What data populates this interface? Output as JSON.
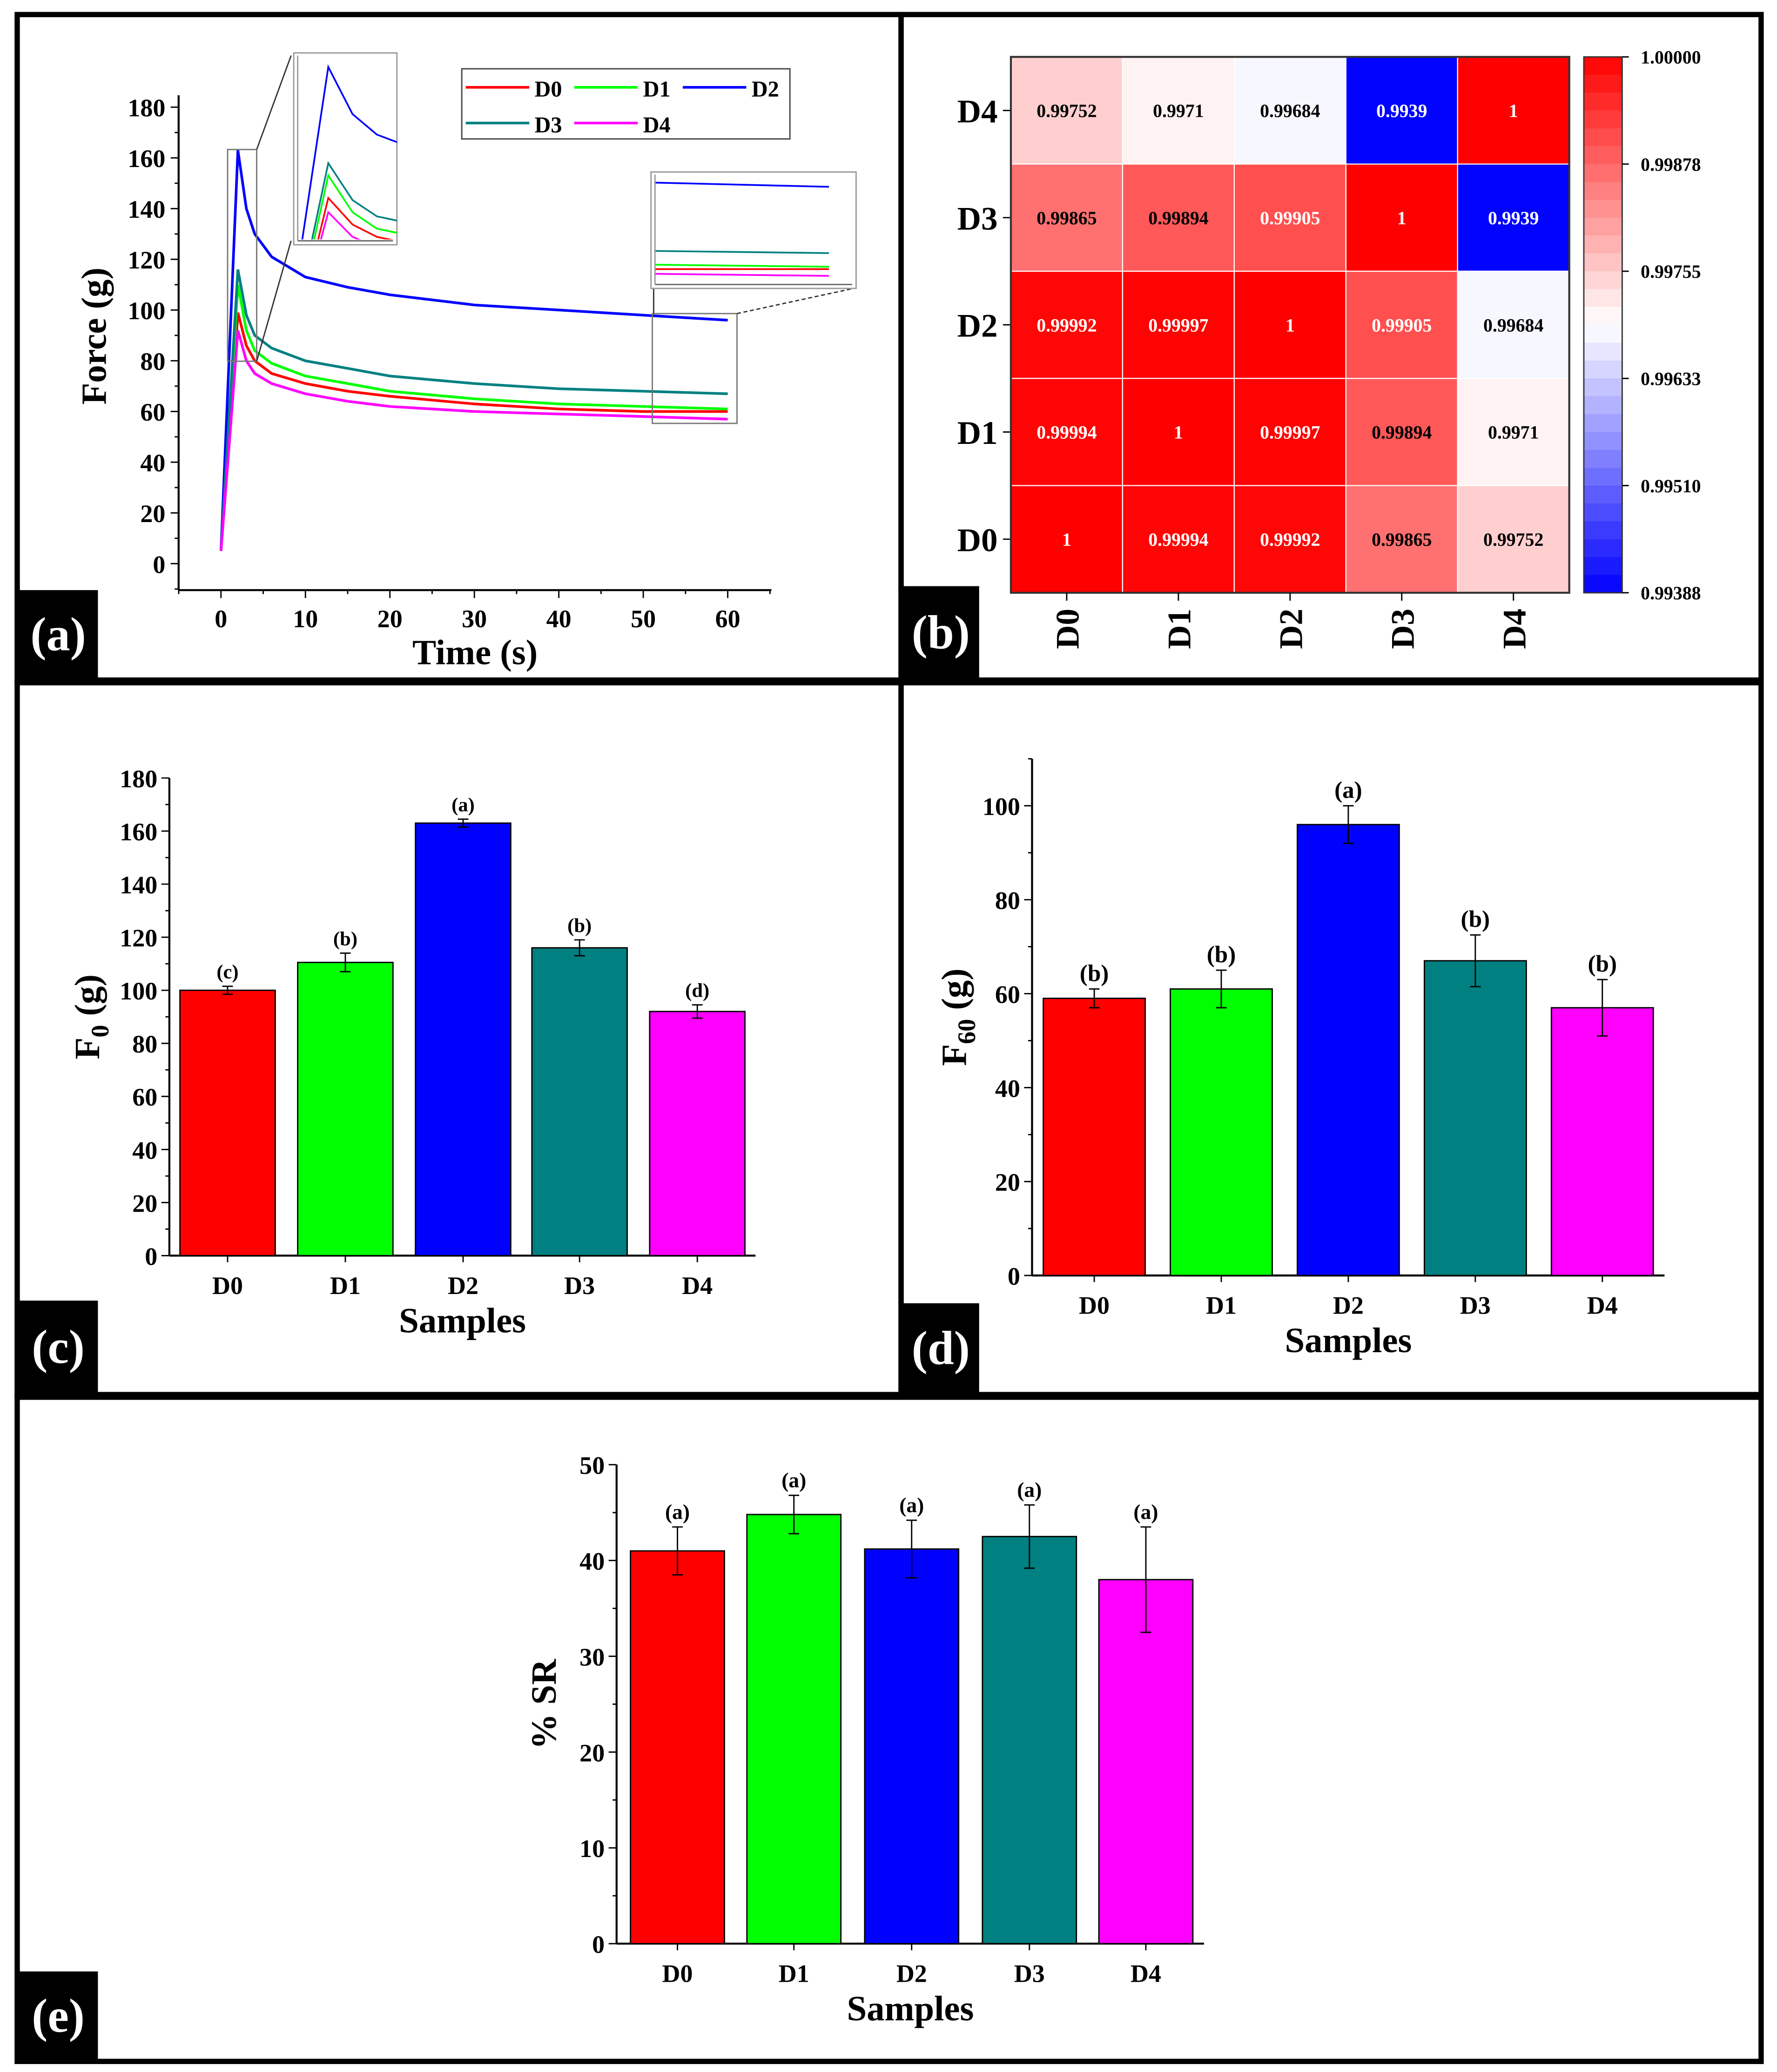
{
  "panel_labels": [
    "(a)",
    "(b)",
    "(c)",
    "(d)",
    "(e)"
  ],
  "colors": {
    "D0": "#ff0000",
    "D1": "#00ff00",
    "D2": "#0000ff",
    "D3": "#008080",
    "D4": "#ff00ff"
  },
  "chart_data": [
    {
      "id": "a",
      "type": "line",
      "xlabel": "Time (s)",
      "ylabel": "Force (g)",
      "xlim": [
        -5,
        65
      ],
      "ylim": [
        -10,
        185
      ],
      "xticks": [
        0,
        10,
        20,
        30,
        40,
        50,
        60
      ],
      "yticks": [
        0,
        20,
        40,
        60,
        80,
        100,
        120,
        140,
        160,
        180
      ],
      "legend": "top-right",
      "x": [
        0,
        1,
        2,
        3,
        4,
        6,
        10,
        15,
        20,
        30,
        40,
        50,
        60
      ],
      "series": [
        {
          "name": "D0",
          "values": [
            5,
            50,
            99,
            86,
            80,
            75,
            71,
            68,
            66,
            63,
            61,
            60,
            60
          ]
        },
        {
          "name": "D1",
          "values": [
            5,
            56,
            110,
            92,
            84,
            79,
            74,
            71,
            68,
            65,
            63,
            62,
            61
          ]
        },
        {
          "name": "D2",
          "values": [
            5,
            84,
            163,
            140,
            130,
            121,
            113,
            109,
            106,
            102,
            100,
            98,
            96
          ]
        },
        {
          "name": "D3",
          "values": [
            5,
            60,
            116,
            98,
            90,
            85,
            80,
            77,
            74,
            71,
            69,
            68,
            67
          ]
        },
        {
          "name": "D4",
          "values": [
            5,
            48,
            92,
            80,
            75,
            71,
            67,
            64,
            62,
            60,
            59,
            58,
            57
          ]
        }
      ],
      "insets": [
        {
          "name": "peak-zoom",
          "xlim": [
            0.8,
            4.5
          ],
          "ylim": [
            80,
            166
          ]
        },
        {
          "name": "end-zoom",
          "xlim": [
            51,
            61
          ],
          "ylim": [
            55,
            99
          ]
        }
      ]
    },
    {
      "id": "b",
      "type": "heatmap",
      "rows": [
        "D4",
        "D3",
        "D2",
        "D1",
        "D0"
      ],
      "cols": [
        "D0",
        "D1",
        "D2",
        "D3",
        "D4"
      ],
      "values": [
        [
          "0.99752",
          "0.9971",
          "0.99684",
          "0.9939",
          "1"
        ],
        [
          "0.99865",
          "0.99894",
          "0.99905",
          "1",
          "0.9939"
        ],
        [
          "0.99992",
          "0.99997",
          "1",
          "0.99905",
          "0.99684"
        ],
        [
          "0.99994",
          "1",
          "0.99997",
          "0.99894",
          "0.9971"
        ],
        [
          "1",
          "0.99994",
          "0.99992",
          "0.99865",
          "0.99752"
        ]
      ],
      "colorbar": {
        "min": 0.99388,
        "max": 1.0,
        "ticks": [
          "1.00000",
          "0.99878",
          "0.99755",
          "0.99633",
          "0.99510",
          "0.99388"
        ],
        "low_color": "#0000ff",
        "mid_color": "#ffffff",
        "high_color": "#ff0000"
      }
    },
    {
      "id": "c",
      "type": "bar",
      "categories": [
        "D0",
        "D1",
        "D2",
        "D3",
        "D4"
      ],
      "values": [
        100,
        110.5,
        163,
        116,
        92
      ],
      "errors": [
        1.5,
        3.5,
        1.5,
        3,
        2.5
      ],
      "letters": [
        "(c)",
        "(b)",
        "(a)",
        "(b)",
        "(d)"
      ],
      "xlabel": "Samples",
      "ylabel": "F",
      "ylabel_sub": "0",
      "ylabel_unit": " (g)",
      "ylim": [
        0,
        180
      ],
      "yticks": [
        0,
        20,
        40,
        60,
        80,
        100,
        120,
        140,
        160,
        180
      ]
    },
    {
      "id": "d",
      "type": "bar",
      "categories": [
        "D0",
        "D1",
        "D2",
        "D3",
        "D4"
      ],
      "values": [
        59,
        61,
        96,
        67,
        57
      ],
      "errors": [
        2,
        4,
        4,
        5.5,
        6
      ],
      "letters": [
        "(b)",
        "(b)",
        "(a)",
        "(b)",
        "(b)"
      ],
      "xlabel": "Samples",
      "ylabel": "F",
      "ylabel_sub": "60",
      "ylabel_unit": " (g)",
      "ylim": [
        0,
        110
      ],
      "yticks": [
        0,
        20,
        40,
        60,
        80,
        100
      ]
    },
    {
      "id": "e",
      "type": "bar",
      "categories": [
        "D0",
        "D1",
        "D2",
        "D3",
        "D4"
      ],
      "values": [
        41,
        44.8,
        41.2,
        42.5,
        38
      ],
      "errors": [
        2.5,
        2,
        3,
        3.3,
        5.5
      ],
      "letters": [
        "(a)",
        "(a)",
        "(a)",
        "(a)",
        "(a)"
      ],
      "xlabel": "Samples",
      "ylabel": "% SR",
      "ylabel_sub": "",
      "ylabel_unit": "",
      "ylim": [
        0,
        50
      ],
      "yticks": [
        0,
        10,
        20,
        30,
        40,
        50
      ]
    }
  ]
}
